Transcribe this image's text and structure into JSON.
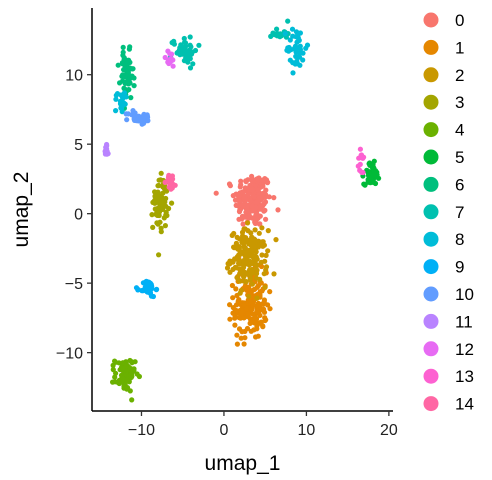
{
  "chart_data": {
    "type": "scatter",
    "title": "",
    "xlabel": "umap_1",
    "ylabel": "umap_2",
    "xlim": [
      -16,
      20.5
    ],
    "ylim": [
      -14.2,
      14.8
    ],
    "x_ticks": [
      -10,
      0,
      10,
      20
    ],
    "y_ticks": [
      -10,
      -5,
      0,
      5,
      10
    ],
    "x_tick_labels": [
      "−10",
      "0",
      "10",
      "20"
    ],
    "y_tick_labels": [
      "−10",
      "−5",
      "0",
      "5",
      "10"
    ],
    "grid": false,
    "legend_position": "right",
    "series": [
      {
        "name": "0",
        "color": "#F8766D",
        "clusters": [
          {
            "cx": 3.5,
            "cy": 1.0,
            "sx": 1.1,
            "sy": 1.0,
            "n": 200
          }
        ]
      },
      {
        "name": "1",
        "color": "#E58700",
        "clusters": [
          {
            "cx": 3.2,
            "cy": -6.6,
            "sx": 1.0,
            "sy": 1.2,
            "n": 180
          }
        ]
      },
      {
        "name": "2",
        "color": "#C99800",
        "clusters": [
          {
            "cx": 3.0,
            "cy": -3.2,
            "sx": 1.1,
            "sy": 1.0,
            "n": 180
          }
        ]
      },
      {
        "name": "3",
        "color": "#A3A500",
        "clusters": [
          {
            "cx": -7.7,
            "cy": 0.9,
            "sx": 0.45,
            "sy": 1.0,
            "n": 70
          }
        ]
      },
      {
        "name": "4",
        "color": "#6BB100",
        "clusters": [
          {
            "cx": -12.0,
            "cy": -11.6,
            "sx": 0.6,
            "sy": 0.6,
            "n": 80
          }
        ]
      },
      {
        "name": "5",
        "color": "#00BA38",
        "clusters": [
          {
            "cx": 17.9,
            "cy": 2.9,
            "sx": 0.45,
            "sy": 0.4,
            "n": 60
          }
        ]
      },
      {
        "name": "6",
        "color": "#00BF7D",
        "clusters": [
          {
            "cx": -11.8,
            "cy": 9.8,
            "sx": 0.4,
            "sy": 0.9,
            "n": 60
          }
        ]
      },
      {
        "name": "7",
        "color": "#00C0AF",
        "clusters": [
          {
            "cx": -4.8,
            "cy": 11.8,
            "sx": 0.8,
            "sy": 0.5,
            "n": 50
          },
          {
            "cx": 6.9,
            "cy": 13.0,
            "sx": 0.5,
            "sy": 0.25,
            "n": 15
          }
        ]
      },
      {
        "name": "8",
        "color": "#00BCD8",
        "clusters": [
          {
            "cx": 8.8,
            "cy": 11.9,
            "sx": 0.6,
            "sy": 0.8,
            "n": 40
          },
          {
            "cx": -12.4,
            "cy": 8.2,
            "sx": 0.4,
            "sy": 0.5,
            "n": 20
          }
        ]
      },
      {
        "name": "9",
        "color": "#00B0F6",
        "clusters": [
          {
            "cx": -9.2,
            "cy": -5.4,
            "sx": 0.45,
            "sy": 0.3,
            "n": 35
          }
        ]
      },
      {
        "name": "10",
        "color": "#619CFF",
        "clusters": [
          {
            "cx": -10.2,
            "cy": 6.9,
            "sx": 0.7,
            "sy": 0.25,
            "n": 30
          }
        ]
      },
      {
        "name": "11",
        "color": "#B983FF",
        "clusters": [
          {
            "cx": -14.3,
            "cy": 4.5,
            "sx": 0.2,
            "sy": 0.35,
            "n": 10
          }
        ]
      },
      {
        "name": "12",
        "color": "#E76BF3",
        "clusters": [
          {
            "cx": -6.6,
            "cy": 11.1,
            "sx": 0.4,
            "sy": 0.3,
            "n": 15
          }
        ]
      },
      {
        "name": "13",
        "color": "#FD61D1",
        "clusters": [
          {
            "cx": 16.7,
            "cy": 3.6,
            "sx": 0.25,
            "sy": 0.5,
            "n": 12
          }
        ]
      },
      {
        "name": "14",
        "color": "#FF67A4",
        "clusters": [
          {
            "cx": -6.4,
            "cy": 2.3,
            "sx": 0.3,
            "sy": 0.3,
            "n": 20
          }
        ]
      }
    ]
  }
}
